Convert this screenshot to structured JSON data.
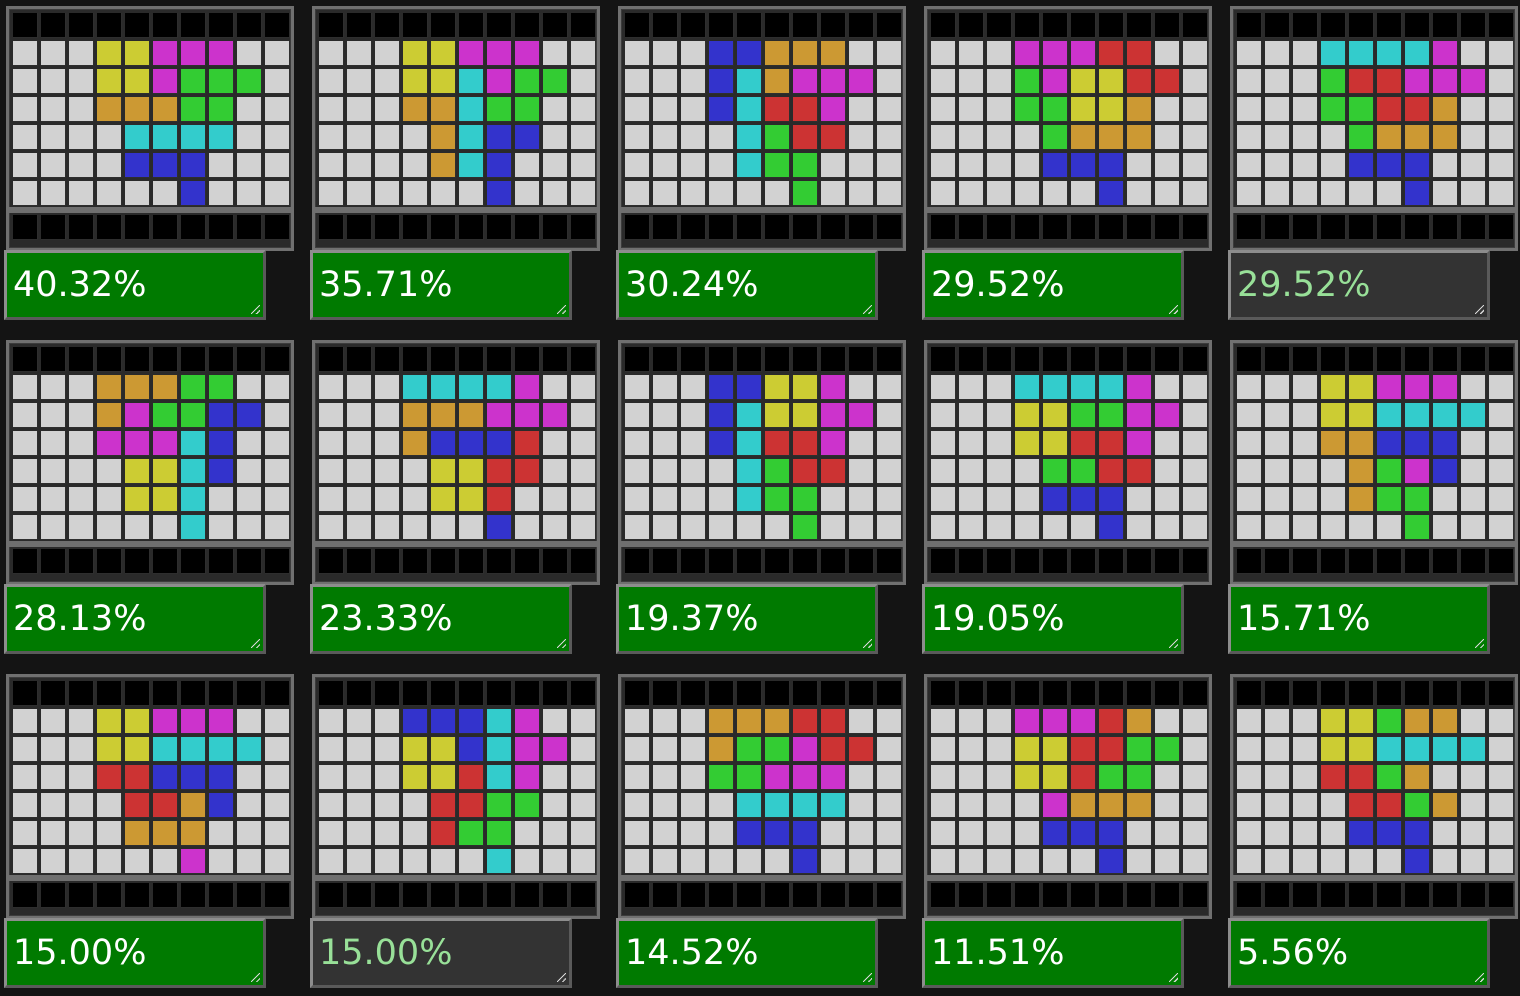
{
  "palette": {
    "W": "#d2d2d2",
    "K": "#000000",
    "Y": "#cccc33",
    "M": "#cc33cc",
    "O": "#cc9933",
    "G": "#33cc33",
    "C": "#33cccc",
    "B": "#3333cc",
    "R": "#cc3333"
  },
  "tiles": [
    {
      "score": "40.32%",
      "status": "active",
      "board": [
        "KKKKKKKKKK",
        "WWWYYMMMWW",
        "WWWYYMGGGW",
        "WWWOOOGGWW",
        "WWWWCCCCWW",
        "WWWWBBBWWW",
        "WWWWWWBWWW",
        "KKKKKKKKKK"
      ]
    },
    {
      "score": "35.71%",
      "status": "active",
      "board": [
        "KKKKKKKKKK",
        "WWWYYMMMWW",
        "WWWYYCMGGW",
        "WWWOOCGGWW",
        "WWWWOCBBWW",
        "WWWWOCBWWW",
        "WWWWWWBWWW",
        "KKKKKKKKKK"
      ]
    },
    {
      "score": "30.24%",
      "status": "active",
      "board": [
        "KKKKKKKKKK",
        "WWWBBOOOWW",
        "WWWBCOMMMW",
        "WWWBCRRMWW",
        "WWWWCGRRWW",
        "WWWWCGGWWW",
        "WWWWWWGWWW",
        "KKKKKKKKKK"
      ]
    },
    {
      "score": "29.52%",
      "status": "active",
      "board": [
        "KKKKKKKKKK",
        "WWWMMMRRWW",
        "WWWGMYYRRW",
        "WWWGGYYOWW",
        "WWWWGOOOWW",
        "WWWWBBBWWW",
        "WWWWWWBWWW",
        "KKKKKKKKKK"
      ]
    },
    {
      "score": "29.52%",
      "status": "dim",
      "board": [
        "KKKKKKKKKK",
        "WWWCCCCMWW",
        "WWWGRRMMMW",
        "WWWGGRROWW",
        "WWWWGOOOWW",
        "WWWWBBBWWW",
        "WWWWWWBWWW",
        "KKKKKKKKKK"
      ]
    },
    {
      "score": "28.13%",
      "status": "active",
      "board": [
        "KKKKKKKKKK",
        "WWWOOOGGWW",
        "WWWOMGGBBW",
        "WWWMMMCBWW",
        "WWWWYYCBWW",
        "WWWWYYCWWW",
        "WWWWWWCWWW",
        "KKKKKKKKKK"
      ]
    },
    {
      "score": "23.33%",
      "status": "active",
      "board": [
        "KKKKKKKKKK",
        "WWWCCCCMWW",
        "WWWOOOMMMW",
        "WWWOBBBRWW",
        "WWWWYYRRWW",
        "WWWWYYRWWW",
        "WWWWWWBWWW",
        "KKKKKKKKKK"
      ]
    },
    {
      "score": "19.37%",
      "status": "active",
      "board": [
        "KKKKKKKKKK",
        "WWWBBYYMWW",
        "WWWBCYYMMW",
        "WWWBCRRMWW",
        "WWWWCGRRWW",
        "WWWWCGGWWW",
        "WWWWWWGWWW",
        "KKKKKKKKKK"
      ]
    },
    {
      "score": "19.05%",
      "status": "active",
      "board": [
        "KKKKKKKKKK",
        "WWWCCCCMWW",
        "WWWYYGGMMW",
        "WWWYYRRMWW",
        "WWWWGGRRWW",
        "WWWWBBBWWW",
        "WWWWWWBWWW",
        "KKKKKKKKKK"
      ]
    },
    {
      "score": "15.71%",
      "status": "active",
      "board": [
        "KKKKKKKKKK",
        "WWWYYMMMWW",
        "WWWYYCCCCW",
        "WWWOOBBBWW",
        "WWWWOGMBWW",
        "WWWWOGGWWW",
        "WWWWWWGWWW",
        "KKKKKKKKKK"
      ]
    },
    {
      "score": "15.00%",
      "status": "active",
      "board": [
        "KKKKKKKKKK",
        "WWWYYMMMWW",
        "WWWYYCCCCW",
        "WWWRRBBBWW",
        "WWWWRROBWW",
        "WWWWOOOWWW",
        "WWWWWWMWWW",
        "KKKKKKKKKK"
      ]
    },
    {
      "score": "15.00%",
      "status": "dim",
      "board": [
        "KKKKKKKKKK",
        "WWWBBBCMWW",
        "WWWYYBCMMW",
        "WWWYYRCMWW",
        "WWWWRRGGWW",
        "WWWWRGGWWW",
        "WWWWWWCWWW",
        "KKKKKKKKKK"
      ]
    },
    {
      "score": "14.52%",
      "status": "active",
      "board": [
        "KKKKKKKKKK",
        "WWWOOORRWW",
        "WWWOGGMRRW",
        "WWWGGMMMWW",
        "WWWWCCCCWW",
        "WWWWBBBWWW",
        "WWWWWWBWWW",
        "KKKKKKKKKK"
      ]
    },
    {
      "score": "11.51%",
      "status": "active",
      "board": [
        "KKKKKKKKKK",
        "WWWMMMROWW",
        "WWWYYRRGGW",
        "WWWYYRGGWW",
        "WWWWMOOOWW",
        "WWWWBBBWWW",
        "WWWWWWBWWW",
        "KKKKKKKKKK"
      ]
    },
    {
      "score": "5.56%",
      "status": "active",
      "board": [
        "KKKKKKKKKK",
        "WWWYYGOOWW",
        "WWWYYCCCCW",
        "WWWRRGOWWW",
        "WWWWRRGOWW",
        "WWWWBBBWWW",
        "WWWWWWBWWW",
        "KKKKKKKKKK"
      ]
    }
  ]
}
